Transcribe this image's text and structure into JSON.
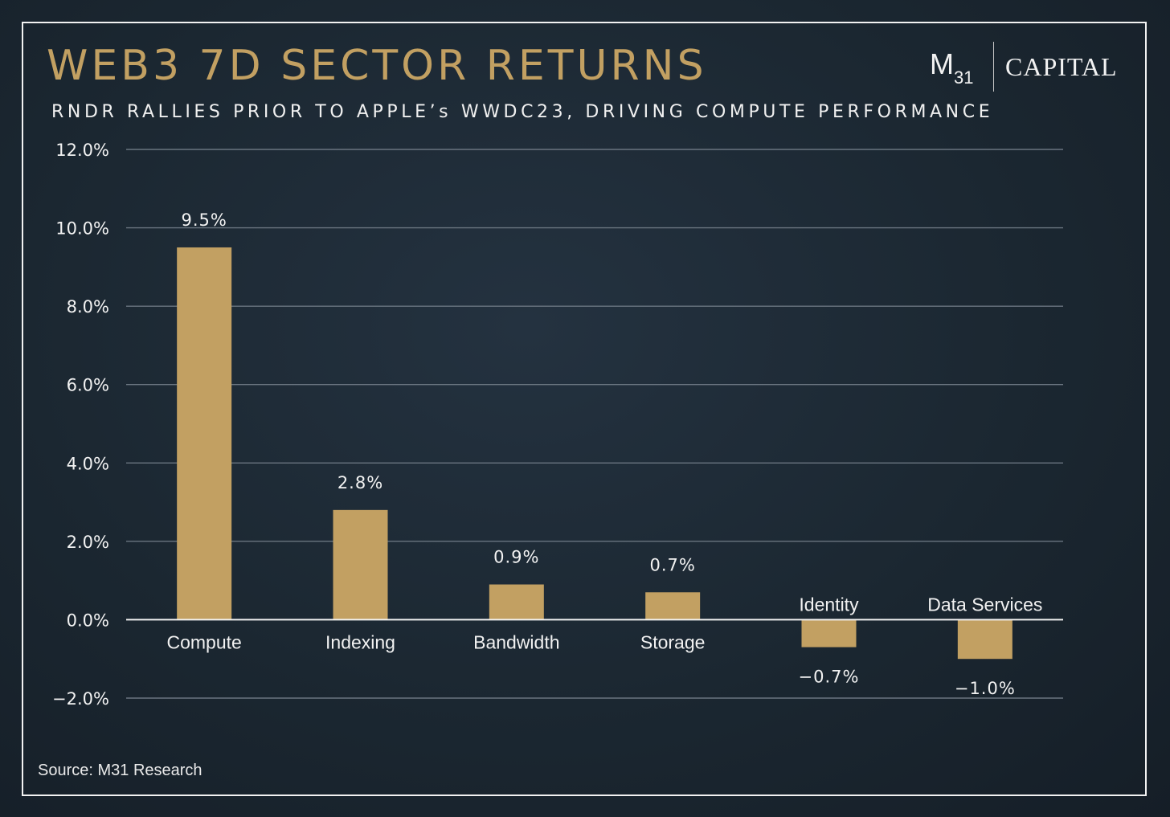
{
  "header": {
    "title": "WEB3 7D SECTOR RETURNS",
    "subtitle": "RNDR RALLIES PRIOR TO APPLE’s WWDC23, DRIVING COMPUTE PERFORMANCE"
  },
  "logo": {
    "m_text": "M",
    "m_subscript": "31",
    "capital_text": "CAPITAL"
  },
  "footer": {
    "source": "Source: M31 Research"
  },
  "colors": {
    "bar": "#c2a062",
    "title": "#c2a062",
    "gridline": "#6a7580",
    "zero_line": "#f2f2f2",
    "text": "#f2f2f2"
  },
  "chart_data": {
    "type": "bar",
    "title": "WEB3 7D SECTOR RETURNS",
    "subtitle": "RNDR RALLIES PRIOR TO APPLE’s WWDC23, DRIVING COMPUTE PERFORMANCE",
    "categories": [
      "Compute",
      "Indexing",
      "Bandwidth",
      "Storage",
      "Identity",
      "Data Services"
    ],
    "values": [
      9.5,
      2.8,
      0.9,
      0.7,
      -0.7,
      -1.0
    ],
    "value_labels": [
      "9.5%",
      "2.8%",
      "0.9%",
      "0.7%",
      "−0.7%",
      "−1.0%"
    ],
    "ylim": [
      -2.0,
      12.0
    ],
    "yticks": [
      12.0,
      10.0,
      8.0,
      6.0,
      4.0,
      2.0,
      0.0,
      -2.0
    ],
    "ytick_labels": [
      "12.0%",
      "10.0%",
      "8.0%",
      "6.0%",
      "4.0%",
      "2.0%",
      "0.0%",
      "−2.0%"
    ],
    "xlabel": "",
    "ylabel": "",
    "grid": true,
    "legend": "none"
  }
}
